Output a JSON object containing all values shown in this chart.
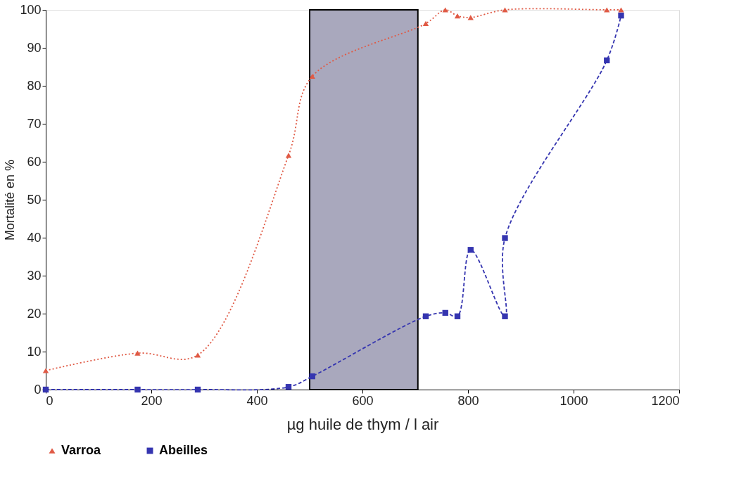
{
  "chart_data": {
    "type": "line",
    "xlabel": "µg huile de thym / l air",
    "ylabel": "Mortalité en %",
    "xlim": [
      0,
      1200
    ],
    "xticks": [
      0,
      200,
      400,
      600,
      800,
      1000,
      1200
    ],
    "ylim": [
      0,
      100
    ],
    "yticks": [
      0,
      10,
      20,
      30,
      40,
      50,
      60,
      70,
      80,
      90,
      100
    ],
    "grid": false,
    "legend": "bottom",
    "line_style": "dotted",
    "bands": [
      {
        "axis": "x",
        "from": 500,
        "to": 705,
        "color": "#a9a8bd"
      }
    ],
    "series": [
      {
        "name": "Varroa",
        "color": "#e05a45",
        "marker": "triangle",
        "x": [
          0,
          174,
          288,
          460,
          505,
          720,
          757,
          780,
          805,
          870,
          1063,
          1090
        ],
        "values": [
          5,
          9.6,
          9.1,
          61.7,
          82.5,
          96.4,
          100,
          98.4,
          98,
          100,
          100,
          100
        ]
      },
      {
        "name": "Abeilles",
        "color": "#3535b0",
        "marker": "square",
        "line_style": "dashed",
        "x": [
          0,
          174,
          288,
          460,
          505,
          720,
          757,
          780,
          805,
          870,
          870,
          1063,
          1090
        ],
        "values": [
          0,
          0,
          0,
          0.7,
          3.5,
          19.3,
          20.2,
          19.3,
          36.8,
          19.3,
          39.9,
          86.7,
          98.5
        ]
      }
    ]
  }
}
